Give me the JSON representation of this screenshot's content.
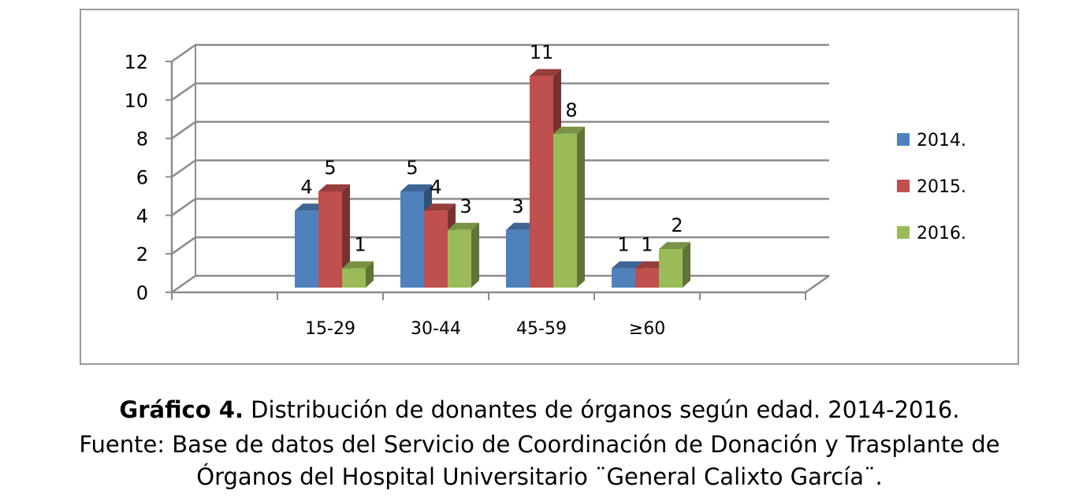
{
  "chart_data": {
    "type": "bar",
    "title": "",
    "xlabel": "",
    "ylabel": "",
    "categories": [
      "15-29",
      "30-44",
      "45-59",
      "≥60"
    ],
    "series": [
      {
        "name": "2014.",
        "values": [
          4,
          5,
          3,
          1
        ],
        "color": "#4F81BD"
      },
      {
        "name": "2015.",
        "values": [
          5,
          4,
          11,
          1
        ],
        "color": "#C0504D"
      },
      {
        "name": "2016.",
        "values": [
          1,
          3,
          8,
          2
        ],
        "color": "#9BBB59"
      }
    ],
    "ylim": [
      0,
      12
    ],
    "yticks": [
      "0",
      "2",
      "4",
      "6",
      "8",
      "10",
      "12"
    ],
    "grid": true,
    "legend": "right",
    "data_labels": true
  },
  "caption": {
    "label": "Gráfico 4.",
    "line1": " Distribución de donantes de órganos según edad. 2014-2016.",
    "line2": "Fuente: Base de datos del Servicio de Coordinación de Donación y Trasplante de",
    "line3": "Órganos del Hospital Universitario ¨General Calixto García¨."
  }
}
